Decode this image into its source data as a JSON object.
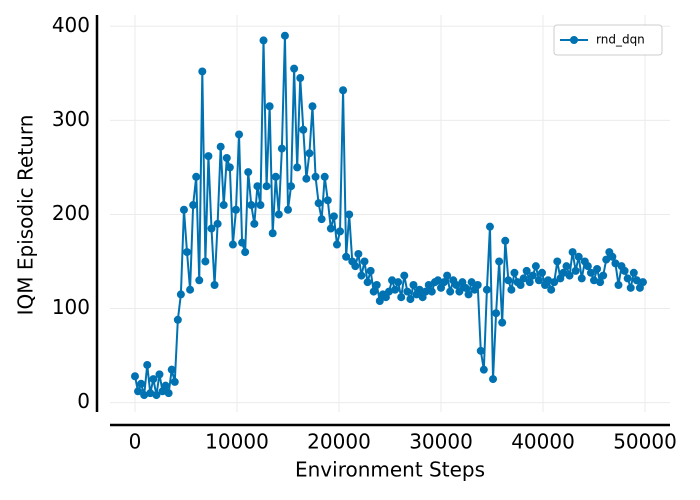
{
  "chart_data": {
    "type": "line",
    "x": [
      0,
      300,
      600,
      900,
      1200,
      1500,
      1800,
      2100,
      2400,
      2700,
      3000,
      3300,
      3600,
      3900,
      4200,
      4500,
      4800,
      5100,
      5400,
      5700,
      6000,
      6300,
      6600,
      6900,
      7200,
      7500,
      7800,
      8100,
      8400,
      8700,
      9000,
      9300,
      9600,
      9900,
      10200,
      10500,
      10800,
      11100,
      11400,
      11700,
      12000,
      12300,
      12600,
      12900,
      13200,
      13500,
      13800,
      14100,
      14400,
      14700,
      15000,
      15300,
      15600,
      15900,
      16200,
      16500,
      16800,
      17100,
      17400,
      17700,
      18000,
      18300,
      18600,
      18900,
      19200,
      19500,
      19800,
      20100,
      20400,
      20700,
      21000,
      21300,
      21600,
      21900,
      22200,
      22500,
      22800,
      23100,
      23400,
      23700,
      24000,
      24300,
      24600,
      24900,
      25200,
      25500,
      25800,
      26100,
      26400,
      26700,
      27000,
      27300,
      27600,
      27900,
      28200,
      28500,
      28800,
      29100,
      29400,
      29700,
      30000,
      30300,
      30600,
      30900,
      31200,
      31500,
      31800,
      32100,
      32400,
      32700,
      33000,
      33300,
      33600,
      33900,
      34200,
      34500,
      34800,
      35100,
      35400,
      35700,
      36000,
      36300,
      36600,
      36900,
      37200,
      37500,
      37800,
      38100,
      38400,
      38700,
      39000,
      39300,
      39600,
      39900,
      40200,
      40500,
      40800,
      41100,
      41400,
      41700,
      42000,
      42300,
      42600,
      42900,
      43200,
      43500,
      43800,
      44100,
      44400,
      44700,
      45000,
      45300,
      45600,
      45900,
      46200,
      46500,
      46800,
      47100,
      47400,
      47700,
      48000,
      48300,
      48600,
      48900,
      49200,
      49500,
      49800
    ],
    "series": [
      {
        "name": "rnd_dqn",
        "color": "#0072b2",
        "values": [
          28,
          12,
          20,
          8,
          40,
          10,
          25,
          8,
          30,
          12,
          18,
          10,
          35,
          22,
          88,
          115,
          205,
          160,
          120,
          210,
          240,
          130,
          352,
          150,
          262,
          185,
          125,
          190,
          272,
          210,
          260,
          250,
          168,
          205,
          285,
          170,
          160,
          245,
          210,
          190,
          230,
          210,
          385,
          230,
          315,
          180,
          240,
          200,
          270,
          390,
          205,
          230,
          355,
          250,
          345,
          290,
          238,
          265,
          315,
          240,
          212,
          195,
          240,
          215,
          185,
          198,
          168,
          182,
          332,
          155,
          200,
          150,
          145,
          158,
          135,
          150,
          128,
          140,
          118,
          125,
          108,
          115,
          112,
          118,
          130,
          120,
          128,
          112,
          135,
          118,
          110,
          125,
          115,
          120,
          112,
          118,
          125,
          118,
          128,
          130,
          122,
          128,
          135,
          118,
          130,
          125,
          118,
          128,
          122,
          115,
          128,
          120,
          125,
          55,
          35,
          120,
          187,
          25,
          95,
          150,
          85,
          172,
          130,
          120,
          138,
          128,
          125,
          132,
          140,
          128,
          135,
          145,
          130,
          138,
          125,
          130,
          120,
          128,
          150,
          132,
          138,
          145,
          135,
          160,
          140,
          155,
          132,
          150,
          145,
          138,
          130,
          142,
          128,
          135,
          152,
          160,
          155,
          148,
          125,
          145,
          140,
          132,
          122,
          138,
          130,
          122,
          128
        ]
      }
    ],
    "xlabel": "Environment Steps",
    "ylabel": "IQM Episodic Return",
    "xlim": [
      -2450,
      52450
    ],
    "ylim": [
      -10,
      412
    ],
    "xticks": [
      0,
      10000,
      20000,
      30000,
      40000,
      50000
    ],
    "yticks": [
      0,
      100,
      200,
      300,
      400
    ],
    "grid": true,
    "legend": "upper right"
  }
}
